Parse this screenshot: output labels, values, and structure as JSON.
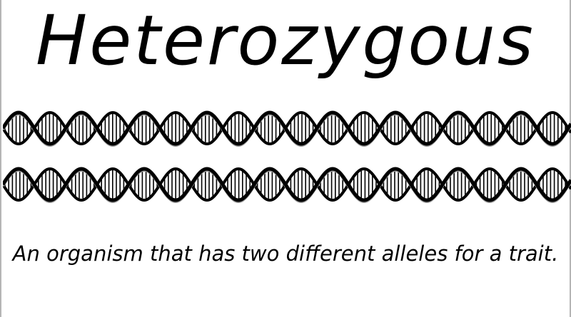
{
  "title": "Heterozygous",
  "definition": "An organism that has two different alleles for a trait.",
  "illustration": {
    "icon": "dna-double-helix-icon",
    "strand_count": 2,
    "colors": {
      "strand": "#000000",
      "rung": "#000000",
      "background": "#ffffff"
    }
  }
}
